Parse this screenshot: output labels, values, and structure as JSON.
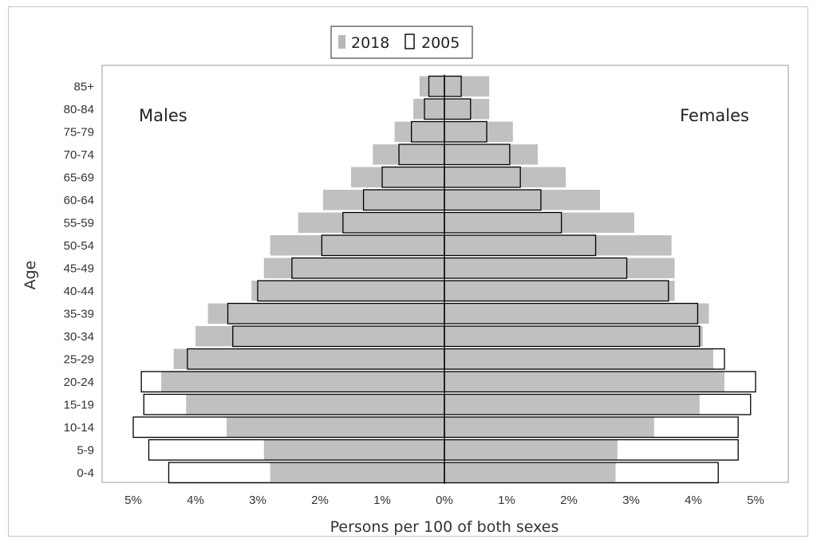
{
  "chart_data": {
    "type": "bar",
    "orientation": "horizontal",
    "subtype": "population-pyramid",
    "title": "",
    "xlabel": "Persons per 100 of both sexes",
    "ylabel": "Age",
    "x_unit": "%",
    "xlim": [
      -5,
      5
    ],
    "x_ticks": [
      -5,
      -4,
      -3,
      -2,
      -1,
      0,
      1,
      2,
      3,
      4,
      5
    ],
    "x_tick_labels": [
      "5%",
      "4%",
      "3%",
      "2%",
      "1%",
      "0%",
      "1%",
      "2%",
      "3%",
      "4%",
      "5%"
    ],
    "categories": [
      "0-4",
      "5-9",
      "10-14",
      "15-19",
      "20-24",
      "25-29",
      "30-34",
      "35-39",
      "40-44",
      "45-49",
      "50-54",
      "55-59",
      "60-64",
      "65-69",
      "70-74",
      "75-79",
      "80-84",
      "85+"
    ],
    "annotations": {
      "left": "Males",
      "right": "Females"
    },
    "legend": {
      "position": "top-center",
      "entries": [
        "2018",
        "2005"
      ]
    },
    "grid": false,
    "series": [
      {
        "name": "2018",
        "style": "filled",
        "color": "#c0c0c0",
        "males": [
          2.8,
          2.9,
          3.5,
          4.15,
          4.55,
          4.35,
          4.0,
          3.8,
          3.1,
          2.9,
          2.8,
          2.35,
          1.95,
          1.5,
          1.15,
          0.8,
          0.5,
          0.4
        ],
        "females": [
          2.75,
          2.78,
          3.37,
          4.1,
          4.5,
          4.32,
          4.15,
          4.25,
          3.7,
          3.7,
          3.65,
          3.05,
          2.5,
          1.95,
          1.5,
          1.1,
          0.72,
          0.72
        ]
      },
      {
        "name": "2005",
        "style": "outline",
        "color": "#000000",
        "males": [
          4.43,
          4.75,
          5.0,
          4.83,
          4.87,
          4.13,
          3.4,
          3.48,
          3.0,
          2.45,
          1.97,
          1.63,
          1.3,
          1.0,
          0.73,
          0.53,
          0.32,
          0.25
        ],
        "females": [
          4.4,
          4.72,
          4.72,
          4.92,
          5.0,
          4.5,
          4.1,
          4.07,
          3.6,
          2.93,
          2.43,
          1.88,
          1.55,
          1.22,
          1.05,
          0.68,
          0.42,
          0.27
        ]
      }
    ]
  }
}
